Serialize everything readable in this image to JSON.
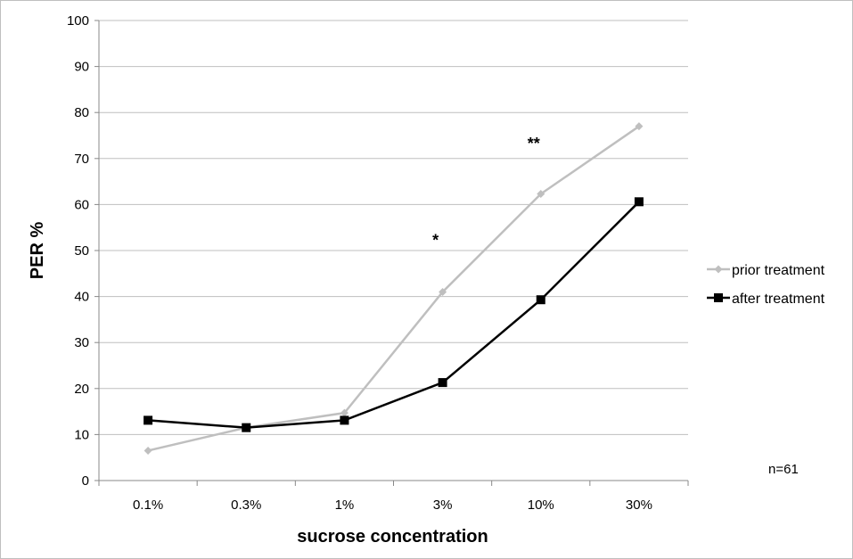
{
  "chart_data": {
    "type": "line",
    "title": "",
    "xlabel": "sucrose concentration",
    "ylabel": "PER  %",
    "ylim": [
      0,
      100
    ],
    "yticks": [
      0,
      10,
      20,
      30,
      40,
      50,
      60,
      70,
      80,
      90,
      100
    ],
    "grid": true,
    "legend_position": "right",
    "categories": [
      "0.1%",
      "0.3%",
      "1%",
      "3%",
      "10%",
      "30%"
    ],
    "series": [
      {
        "name": "prior treatment",
        "color": "#bfbfbf",
        "marker": "diamond",
        "values": [
          6.5,
          11.5,
          14.7,
          41,
          62.3,
          77
        ]
      },
      {
        "name": "after treatment",
        "color": "#000000",
        "marker": "square",
        "values": [
          13.1,
          11.5,
          13.1,
          21.3,
          39.3,
          60.6
        ]
      }
    ],
    "annotations": [
      {
        "text": "*",
        "category": "3%",
        "y": 53
      },
      {
        "text": "**",
        "category": "10%",
        "y": 74
      }
    ],
    "note": "n=61"
  }
}
